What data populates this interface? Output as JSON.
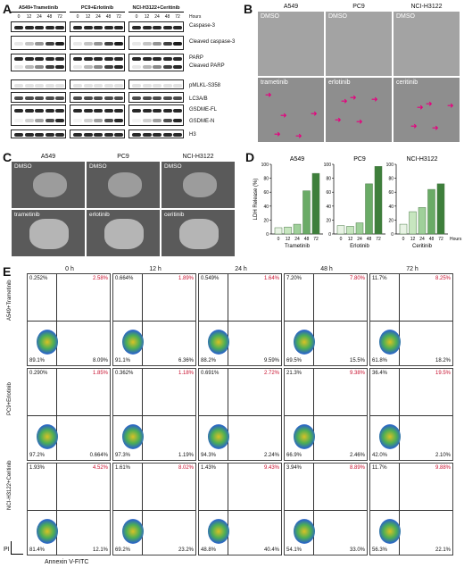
{
  "panels": {
    "A": "A",
    "B": "B",
    "C": "C",
    "D": "D",
    "E": "E"
  },
  "A": {
    "groups": [
      "A549+Trametinib",
      "PC9+Erlotinib",
      "NCI-H3122+Ceritinib"
    ],
    "hours": [
      "0",
      "12",
      "24",
      "48",
      "72"
    ],
    "hours_label": "Hours",
    "rows": [
      "Caspase-3",
      "Cleaved caspase-3",
      "PARP",
      "Cleaved PARP",
      "pMLKL-S358",
      "LC3A/B",
      "GSDME-FL",
      "GSDME-N",
      "H3"
    ]
  },
  "B": {
    "columns": [
      "A549",
      "PC9",
      "NCI-H3122"
    ],
    "top": [
      "DMSO",
      "DMSO",
      "DMSO"
    ],
    "bottom": [
      "trametinib",
      "erlotinib",
      "ceritinib"
    ]
  },
  "C": {
    "columns": [
      "A549",
      "PC9",
      "NCI-H3122"
    ],
    "top": [
      "DMSO",
      "DMSO",
      "DMSO"
    ],
    "bottom": [
      "trametinib",
      "erlotinib",
      "ceritinib"
    ]
  },
  "chart_data": [
    {
      "type": "bar",
      "title": "A549",
      "xlabel": "Trametinib",
      "ylabel": "LDH Release (%)",
      "categories": [
        "0",
        "12",
        "24",
        "48",
        "72"
      ],
      "values": [
        9,
        10,
        14,
        62,
        87
      ],
      "ylim": [
        0,
        100
      ]
    },
    {
      "type": "bar",
      "title": "PC9",
      "xlabel": "Erlotinib",
      "ylabel": "",
      "categories": [
        "0",
        "12",
        "24",
        "48",
        "72"
      ],
      "values": [
        12,
        11,
        16,
        72,
        97
      ],
      "ylim": [
        0,
        100
      ]
    },
    {
      "type": "bar",
      "title": "NCI-H3122",
      "xlabel": "Ceritinib",
      "ylabel": "",
      "categories": [
        "0",
        "12",
        "24",
        "48",
        "72"
      ],
      "values": [
        14,
        32,
        38,
        64,
        72
      ],
      "ylim": [
        0,
        100
      ],
      "x_extra_label": "Hours"
    }
  ],
  "D": {
    "yticks": [
      "0",
      "20",
      "40",
      "60",
      "80",
      "100"
    ],
    "colors": [
      "#e8f3e4",
      "#c7e6bf",
      "#9fd09a",
      "#6aab66",
      "#3e7f3b"
    ]
  },
  "E": {
    "times": [
      "0 h",
      "12 h",
      "24 h",
      "48 h",
      "72 h"
    ],
    "rows": [
      {
        "label": "A549+Trametinib",
        "cells": [
          {
            "ul": "0.252%",
            "ur": "2.58%",
            "ll": "89.1%",
            "lr": "8.09%"
          },
          {
            "ul": "0.664%",
            "ur": "1.89%",
            "ll": "91.1%",
            "lr": "6.36%"
          },
          {
            "ul": "0.549%",
            "ur": "1.64%",
            "ll": "88.2%",
            "lr": "9.59%"
          },
          {
            "ul": "7.20%",
            "ur": "7.80%",
            "ll": "69.5%",
            "lr": "15.5%"
          },
          {
            "ul": "11.7%",
            "ur": "8.25%",
            "ll": "61.8%",
            "lr": "18.2%"
          }
        ]
      },
      {
        "label": "PC9+Erlotinib",
        "cells": [
          {
            "ul": "0.290%",
            "ur": "1.85%",
            "ll": "97.2%",
            "lr": "0.664%"
          },
          {
            "ul": "0.362%",
            "ur": "1.18%",
            "ll": "97.3%",
            "lr": "1.19%"
          },
          {
            "ul": "0.691%",
            "ur": "2.72%",
            "ll": "94.3%",
            "lr": "2.24%"
          },
          {
            "ul": "21.3%",
            "ur": "9.38%",
            "ll": "66.9%",
            "lr": "2.46%"
          },
          {
            "ul": "36.4%",
            "ur": "19.5%",
            "ll": "42.0%",
            "lr": "2.10%"
          }
        ]
      },
      {
        "label": "NCI-H3122+Ceritinib",
        "cells": [
          {
            "ul": "1.93%",
            "ur": "4.52%",
            "ll": "81.4%",
            "lr": "12.1%"
          },
          {
            "ul": "1.61%",
            "ur": "8.02%",
            "ll": "69.2%",
            "lr": "23.2%"
          },
          {
            "ul": "1.43%",
            "ur": "9.43%",
            "ll": "48.8%",
            "lr": "40.4%"
          },
          {
            "ul": "3.94%",
            "ur": "8.89%",
            "ll": "54.1%",
            "lr": "33.0%"
          },
          {
            "ul": "11.7%",
            "ur": "9.88%",
            "ll": "56.3%",
            "lr": "22.1%"
          }
        ]
      }
    ],
    "xlabel": "Annexin V-FITC",
    "ylabel": "PI",
    "yticks": [
      "10⁵",
      "10⁴",
      "10³",
      "10²",
      "10¹",
      "10⁰"
    ],
    "xticks": [
      "10⁰",
      "10¹",
      "10²",
      "10³",
      "10⁴",
      "10⁵"
    ]
  }
}
